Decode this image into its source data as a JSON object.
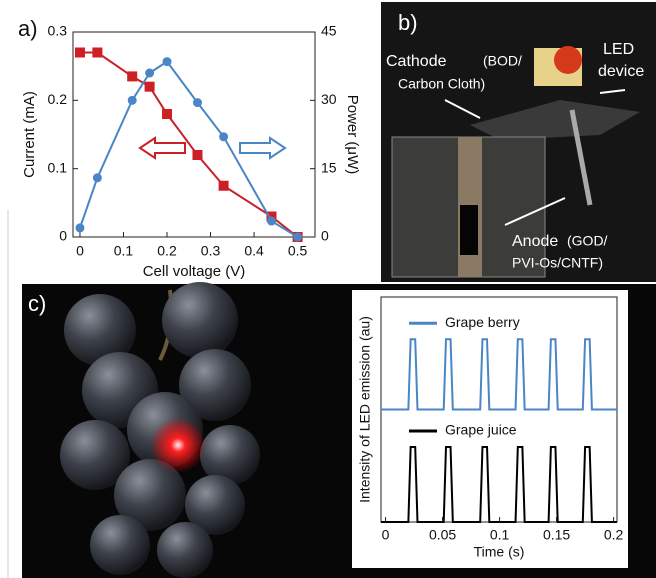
{
  "chart_data": [
    {
      "type": "line",
      "panel": "a)",
      "x_label": "Cell voltage (V)",
      "y_label": "Current (mA)",
      "y2_label": "Power (μW)",
      "x": [
        0,
        0.04,
        0.12,
        0.16,
        0.2,
        0.27,
        0.33,
        0.44,
        0.5
      ],
      "xlim": [
        -0.016,
        0.54
      ],
      "xticks": [
        0,
        0.1,
        0.2,
        0.3,
        0.4,
        0.5
      ],
      "ylim": [
        0,
        0.3
      ],
      "yticks": [
        0,
        0.1,
        0.2,
        0.3
      ],
      "y2lim": [
        0,
        45
      ],
      "y2ticks": [
        0,
        15,
        30,
        45
      ],
      "series": [
        {
          "color": "#cc1f26",
          "marker": "square",
          "values": [
            0.27,
            0.27,
            0.235,
            0.22,
            0.18,
            0.12,
            0.075,
            0.03,
            0
          ]
        },
        {
          "color": "#4a86c5",
          "marker": "circle",
          "axis": "y2",
          "values": [
            2,
            13,
            30,
            36,
            38.5,
            29.5,
            22,
            3.5,
            0
          ]
        }
      ]
    },
    {
      "type": "line",
      "panel": "c)",
      "x_label": "Time (s)",
      "y_label": "Intensity of LED emission (au)",
      "x": [
        -0.004,
        0.02,
        0.022,
        0.026,
        0.028,
        0.051,
        0.053,
        0.057,
        0.059,
        0.083,
        0.085,
        0.089,
        0.091,
        0.114,
        0.116,
        0.12,
        0.122,
        0.143,
        0.145,
        0.149,
        0.151,
        0.173,
        0.175,
        0.179,
        0.181,
        0.203
      ],
      "xlim": [
        -0.004,
        0.203
      ],
      "xticks": [
        0,
        0.05,
        0.1,
        0.15,
        0.2
      ],
      "ylim": [
        0,
        2.4
      ],
      "series": [
        {
          "name": "Grape berry",
          "color": "#4a86c5",
          "values": [
            1.2,
            1.2,
            1.95,
            1.95,
            1.2,
            1.2,
            1.95,
            1.95,
            1.2,
            1.2,
            1.95,
            1.95,
            1.2,
            1.2,
            1.95,
            1.95,
            1.2,
            1.2,
            1.95,
            1.95,
            1.2,
            1.2,
            1.95,
            1.95,
            1.2,
            1.2
          ]
        },
        {
          "name": "Grape juice",
          "color": "#000000",
          "values": [
            0,
            0,
            0.8,
            0.8,
            0,
            0,
            0.8,
            0.8,
            0,
            0,
            0.8,
            0.8,
            0,
            0,
            0.8,
            0.8,
            0,
            0,
            0.8,
            0.8,
            0,
            0,
            0.8,
            0.8,
            0,
            0
          ]
        }
      ]
    }
  ],
  "photo_b": {
    "panel": "b)",
    "cathode": "Cathode",
    "cathode_detail": [
      "(BOD/",
      "Carbon Cloth)"
    ],
    "led": [
      "LED",
      "device"
    ],
    "anode": "Anode",
    "anode_detail": [
      "(GOD/",
      "PVI-Os/CNTF)"
    ]
  }
}
